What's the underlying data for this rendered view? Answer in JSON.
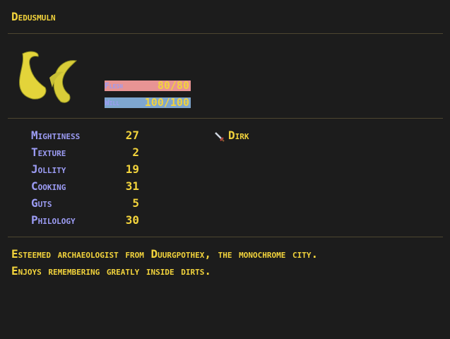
{
  "character": {
    "name": "Dedusmuln"
  },
  "bars": [
    {
      "name": "Flesh",
      "value": 80,
      "max": 80,
      "value_label": "80/80",
      "color": "#e89494"
    },
    {
      "name": "Will",
      "value": 100,
      "max": 100,
      "value_label": "100/100",
      "color": "#7ea6cf"
    }
  ],
  "stats": [
    {
      "name": "Mightiness",
      "value": 27
    },
    {
      "name": "Texture",
      "value": 2
    },
    {
      "name": "Jollity",
      "value": 19
    },
    {
      "name": "Cooking",
      "value": 31
    },
    {
      "name": "Guts",
      "value": 5
    },
    {
      "name": "Philology",
      "value": 30
    }
  ],
  "equipment": [
    {
      "name": "Dirk"
    }
  ],
  "description": [
    "Esteemed archaeologist from Duurgpothex, the monochrome city.",
    "Enjoys remembering greatly inside dirts."
  ]
}
